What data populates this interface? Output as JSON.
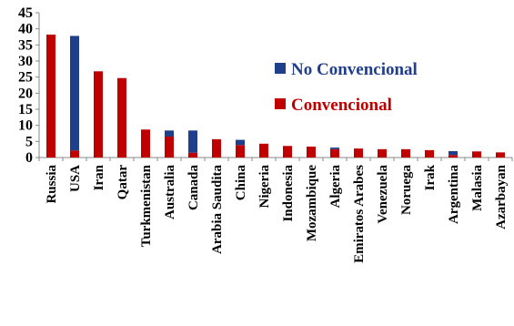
{
  "chart_data": {
    "type": "bar",
    "stacked": true,
    "title": "",
    "xlabel": "",
    "ylabel": "",
    "ylim": [
      0,
      45
    ],
    "yticks": [
      0,
      5,
      10,
      15,
      20,
      25,
      30,
      35,
      40,
      45
    ],
    "grid": false,
    "legend_position": "right",
    "categories": [
      "Russia",
      "USA",
      "Iran",
      "Qatar",
      "Turkmenistan",
      "Australia",
      "Canada",
      "Arabia Saudita",
      "China",
      "Nigeria",
      "Indonesia",
      "Mozambique",
      "Algeria",
      "Emiratos Arabes",
      "Venezuela",
      "Noruega",
      "Irak",
      "Argentina",
      "Malasia",
      "Azarbayan"
    ],
    "series": [
      {
        "name": "Convencional",
        "color": "#c00000",
        "values": [
          38.2,
          2.2,
          26.8,
          24.7,
          8.7,
          6.5,
          1.5,
          5.7,
          3.9,
          4.3,
          3.6,
          3.4,
          2.6,
          2.8,
          2.6,
          2.6,
          2.3,
          0.8,
          1.9,
          1.6
        ]
      },
      {
        "name": "No Convencional",
        "color": "#1f3e8c",
        "values": [
          0,
          35.6,
          0,
          0,
          0,
          1.9,
          6.9,
          0,
          1.6,
          0,
          0,
          0,
          0.5,
          0,
          0,
          0,
          0,
          1.2,
          0,
          0
        ]
      }
    ]
  }
}
